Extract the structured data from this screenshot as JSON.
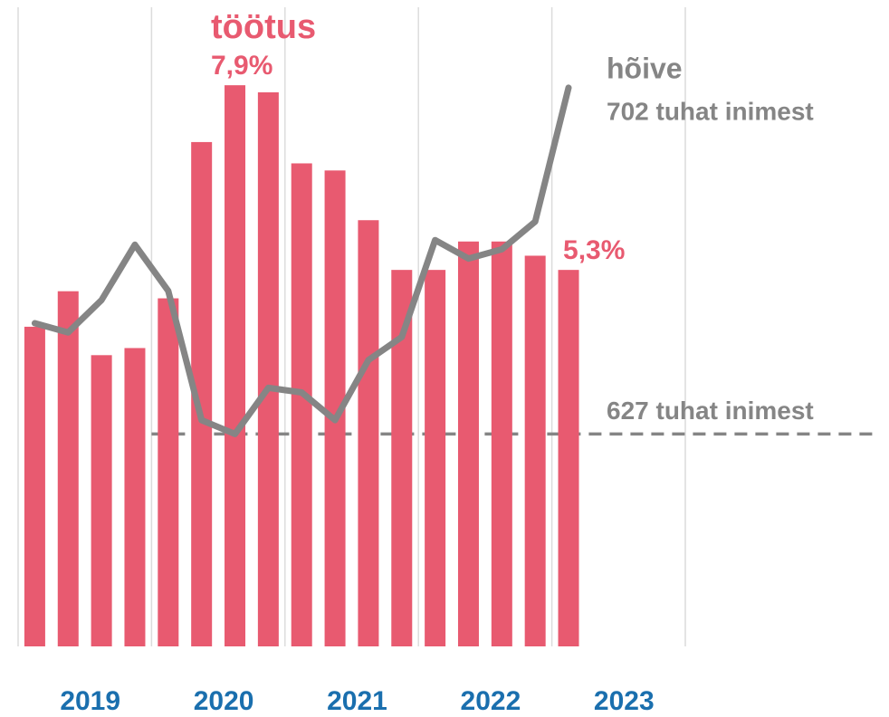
{
  "chart_data": {
    "type": "bar_line",
    "categories": [
      null,
      null,
      null,
      null,
      null,
      null,
      null,
      null,
      null,
      null,
      null,
      null,
      null,
      null,
      null,
      null,
      null
    ],
    "groups": [
      "2019",
      "2020",
      "2021",
      "2022",
      "2023"
    ],
    "series": [
      {
        "name": "töötus",
        "color": "#e85a70",
        "type": "bar",
        "values": [
          4.5,
          5.0,
          4.1,
          4.2,
          4.9,
          7.1,
          7.9,
          7.8,
          6.8,
          6.7,
          6.0,
          5.3,
          5.3,
          5.7,
          5.7,
          5.5,
          5.3
        ],
        "value_labels": [
          null,
          null,
          null,
          null,
          null,
          null,
          "7,9%",
          null,
          null,
          null,
          null,
          null,
          null,
          null,
          null,
          null,
          "5,3%"
        ]
      },
      {
        "name": "hõive",
        "color": "#858585",
        "type": "line",
        "axis": "y2",
        "values": [
          651,
          649,
          656,
          668,
          658,
          630,
          627,
          637,
          636,
          630,
          643,
          648,
          669,
          665,
          667,
          673,
          702
        ],
        "value_labels": [
          null,
          null,
          null,
          null,
          null,
          null,
          null,
          null,
          null,
          null,
          null,
          null,
          null,
          null,
          null,
          null,
          "702 tuhat inimest"
        ]
      }
    ],
    "ylim": [
      0,
      9.1
    ],
    "y2lim": [
      581,
      721
    ],
    "reference_line": {
      "value": 627,
      "label": "627 tuhat inimest",
      "axis": "y2"
    }
  }
}
